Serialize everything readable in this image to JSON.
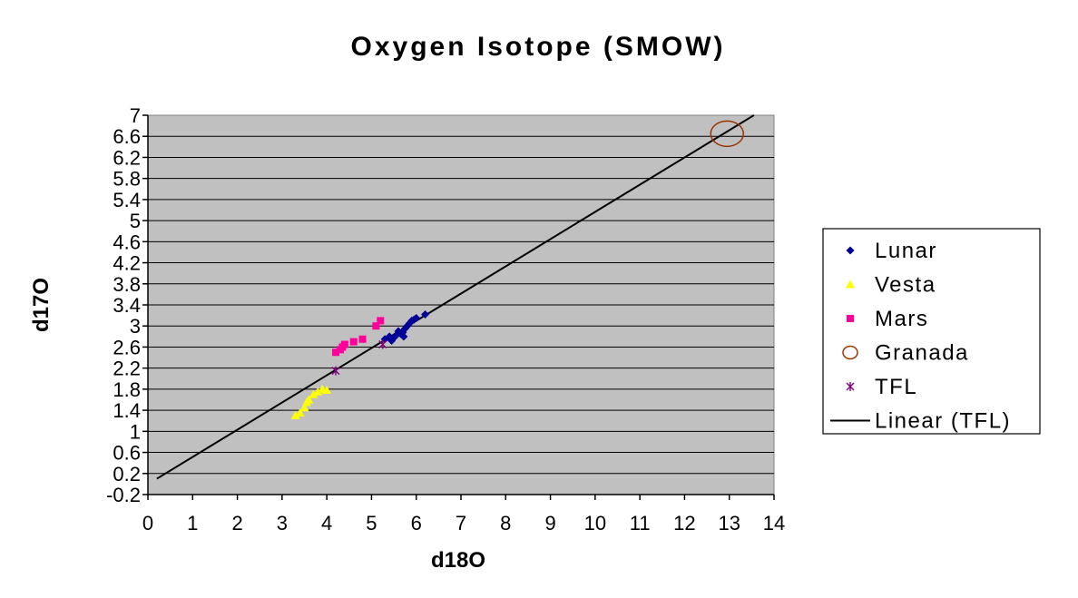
{
  "chart_data": {
    "type": "scatter",
    "title": "Oxygen Isotope (SMOW)",
    "xlabel": "d18O",
    "ylabel": "d17O",
    "xlim": [
      0,
      14
    ],
    "ylim": [
      -0.2,
      7
    ],
    "x_ticks": [
      "0",
      "1",
      "2",
      "3",
      "4",
      "5",
      "6",
      "7",
      "8",
      "9",
      "10",
      "11",
      "12",
      "13",
      "14"
    ],
    "y_ticks": [
      "-0.2",
      "0.2",
      "0.6",
      "1",
      "1.4",
      "1.8",
      "2.2",
      "2.6",
      "3",
      "3.4",
      "3.8",
      "4.2",
      "4.6",
      "5",
      "5.4",
      "5.8",
      "6.2",
      "6.6",
      "7"
    ],
    "grid": true,
    "legend_position": "right",
    "plot_background": "#c0c0c0",
    "series": [
      {
        "name": "Lunar",
        "marker": "diamond",
        "color": "#000099",
        "points": [
          [
            5.3,
            2.75
          ],
          [
            5.4,
            2.8
          ],
          [
            5.45,
            2.72
          ],
          [
            5.5,
            2.78
          ],
          [
            5.55,
            2.82
          ],
          [
            5.6,
            2.9
          ],
          [
            5.65,
            2.85
          ],
          [
            5.7,
            2.88
          ],
          [
            5.72,
            2.8
          ],
          [
            5.75,
            2.95
          ],
          [
            5.8,
            3.0
          ],
          [
            5.85,
            3.05
          ],
          [
            5.9,
            3.1
          ],
          [
            5.95,
            3.12
          ],
          [
            6.0,
            3.15
          ],
          [
            6.2,
            3.22
          ]
        ]
      },
      {
        "name": "Vesta",
        "marker": "triangle",
        "color": "#ffff00",
        "points": [
          [
            3.3,
            1.3
          ],
          [
            3.4,
            1.35
          ],
          [
            3.5,
            1.45
          ],
          [
            3.55,
            1.55
          ],
          [
            3.6,
            1.6
          ],
          [
            3.7,
            1.7
          ],
          [
            3.8,
            1.75
          ],
          [
            3.9,
            1.8
          ],
          [
            4.0,
            1.78
          ]
        ]
      },
      {
        "name": "Mars",
        "marker": "square",
        "color": "#ff0099",
        "points": [
          [
            4.2,
            2.5
          ],
          [
            4.3,
            2.55
          ],
          [
            4.35,
            2.6
          ],
          [
            4.4,
            2.65
          ],
          [
            4.6,
            2.7
          ],
          [
            4.8,
            2.75
          ],
          [
            5.1,
            3.0
          ],
          [
            5.2,
            3.1
          ]
        ]
      },
      {
        "name": "Granada",
        "marker": "circle",
        "color": "#993300",
        "points": [
          [
            12.95,
            6.65
          ]
        ]
      },
      {
        "name": "TFL",
        "marker": "star",
        "color": "#800080",
        "points": [
          [
            4.2,
            2.15
          ],
          [
            5.25,
            2.65
          ]
        ]
      },
      {
        "name": "Linear (TFL)",
        "marker": "line",
        "color": "#000000",
        "line": [
          [
            0.2,
            0.1
          ],
          [
            13.55,
            7.0
          ]
        ]
      }
    ]
  }
}
